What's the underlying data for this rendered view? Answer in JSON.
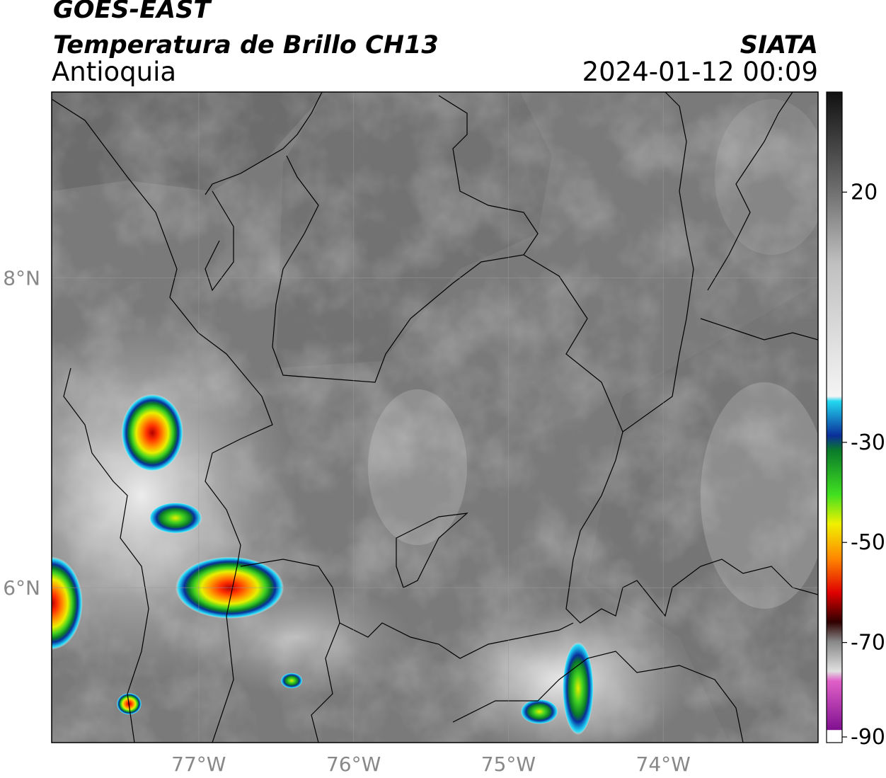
{
  "header": {
    "satellite": "GOES-EAST",
    "product": "Temperatura de Brillo CH13",
    "region": "Antioquia",
    "agency": "SIATA",
    "datetime": "2024-01-12 00:09"
  },
  "axes": {
    "lon_min": -77.95,
    "lon_max": -73.0,
    "lat_min": 5.0,
    "lat_max": 9.2,
    "lon_ticks": [
      {
        "value": -77,
        "label": "77°W"
      },
      {
        "value": -76,
        "label": "76°W"
      },
      {
        "value": -75,
        "label": "75°W"
      },
      {
        "value": -74,
        "label": "74°W"
      }
    ],
    "lat_ticks": [
      {
        "value": 8,
        "label": "8°N"
      },
      {
        "value": 6,
        "label": "6°N"
      }
    ],
    "grid": true
  },
  "colorbar": {
    "min": -90,
    "max": 40,
    "ticks": [
      {
        "value": 20,
        "label": "20"
      },
      {
        "value": -30,
        "label": "-30"
      },
      {
        "value": -50,
        "label": "-50"
      },
      {
        "value": -70,
        "label": "-70"
      },
      {
        "value": -90,
        "label": "-90"
      }
    ],
    "stops": [
      {
        "value": 40,
        "color": "#111111"
      },
      {
        "value": 20,
        "color": "#6e6e6e"
      },
      {
        "value": 5,
        "color": "#c0c0c0"
      },
      {
        "value": -22,
        "color": "#f4f4f4"
      },
      {
        "value": -23,
        "color": "#22d8f0"
      },
      {
        "value": -30,
        "color": "#0a2e9a"
      },
      {
        "value": -33,
        "color": "#0a7a2a"
      },
      {
        "value": -42,
        "color": "#40e020"
      },
      {
        "value": -48,
        "color": "#f0f000"
      },
      {
        "value": -55,
        "color": "#ff8800"
      },
      {
        "value": -62,
        "color": "#e00000"
      },
      {
        "value": -68,
        "color": "#300000"
      },
      {
        "value": -72,
        "color": "#888888"
      },
      {
        "value": -78,
        "color": "#e0e0e0"
      },
      {
        "value": -80,
        "color": "#e060c8"
      },
      {
        "value": -90,
        "color": "#801090"
      }
    ]
  },
  "chart_data": {
    "type": "heatmap",
    "variable": "brightness temperature",
    "cold_cloud_cells": [
      {
        "lon": -77.3,
        "lat": 7.0,
        "rx": 0.2,
        "ry": 0.25,
        "min_temp": -68
      },
      {
        "lon": -76.8,
        "lat": 6.0,
        "rx": 0.35,
        "ry": 0.2,
        "min_temp": -62
      },
      {
        "lon": -77.95,
        "lat": 5.9,
        "rx": 0.2,
        "ry": 0.3,
        "min_temp": -58
      },
      {
        "lon": -77.15,
        "lat": 6.45,
        "rx": 0.17,
        "ry": 0.1,
        "min_temp": -52
      },
      {
        "lon": -77.45,
        "lat": 5.25,
        "rx": 0.08,
        "ry": 0.07,
        "min_temp": -66
      },
      {
        "lon": -74.55,
        "lat": 5.35,
        "rx": 0.1,
        "ry": 0.3,
        "min_temp": -50
      },
      {
        "lon": -74.8,
        "lat": 5.2,
        "rx": 0.12,
        "ry": 0.08,
        "min_temp": -38
      },
      {
        "lon": -76.4,
        "lat": 5.4,
        "rx": 0.07,
        "ry": 0.05,
        "min_temp": -30
      }
    ]
  }
}
